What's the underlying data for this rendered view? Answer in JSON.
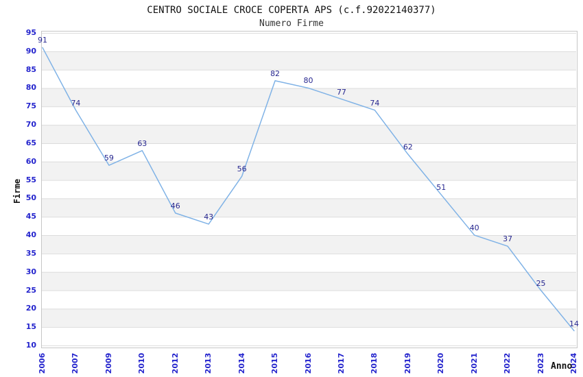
{
  "chart_data": {
    "type": "line",
    "title": "CENTRO SOCIALE CROCE COPERTA APS (c.f.92022140377)",
    "subtitle": "Numero Firme",
    "xlabel": "Anno",
    "ylabel": "Firme",
    "categories": [
      "2006",
      "2007",
      "2009",
      "2010",
      "2012",
      "2013",
      "2014",
      "2015",
      "2016",
      "2017",
      "2018",
      "2019",
      "2020",
      "2021",
      "2022",
      "2023",
      "2024"
    ],
    "values": [
      91,
      74,
      59,
      63,
      46,
      43,
      56,
      82,
      80,
      77,
      74,
      62,
      51,
      40,
      37,
      25,
      14
    ],
    "ylim": [
      10,
      95
    ],
    "ytick_step": 5,
    "grid": "horizontal-bands",
    "legend": "none",
    "data_labels_shown": true,
    "colors": {
      "line": "#7fb2e6",
      "tick_label": "#2424cd",
      "data_label": "#26268f",
      "band": "#f2f2f2",
      "gridline": "#dcdcdc",
      "plot_border": "#c6c6c6",
      "title": "#111111",
      "subtitle": "#333333",
      "axis_title": "#111111",
      "background": "#ffffff"
    }
  }
}
